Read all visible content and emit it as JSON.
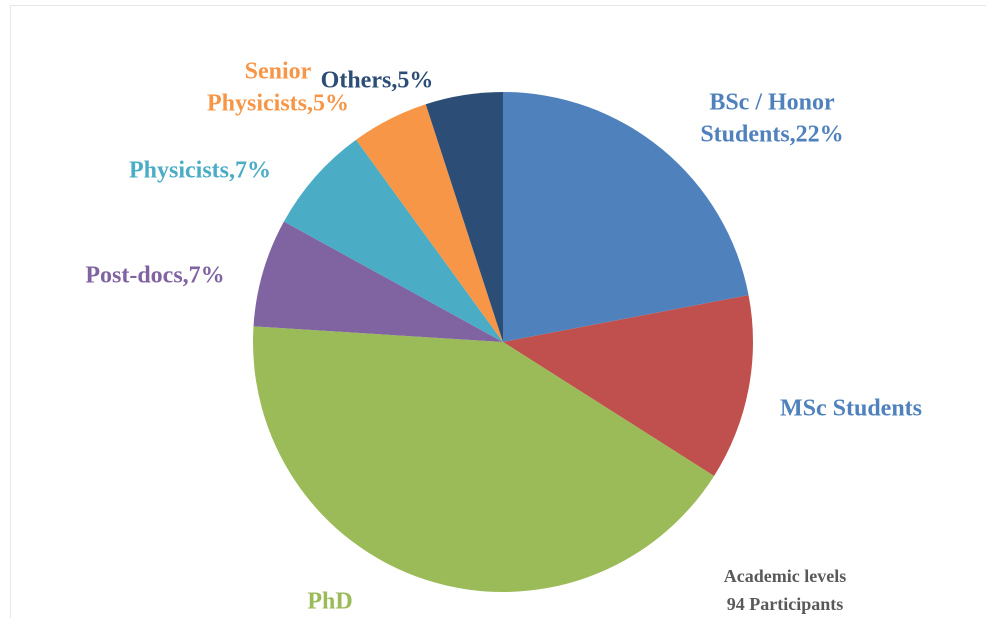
{
  "chart_data": {
    "type": "pie",
    "categories": [
      "BSc / Honor Students",
      "MSc Students",
      "PhD",
      "Post-docs",
      "Physicists",
      "Senior Physicists",
      "Others"
    ],
    "values": [
      22,
      12,
      42,
      7,
      7,
      5,
      5
    ],
    "colors": [
      "#4f81bd",
      "#c0504d",
      "#9bbb59",
      "#8064a2",
      "#4bacc6",
      "#f79646",
      "#2c4d75"
    ],
    "labels": [
      [
        "BSc / Honor",
        "Students,22%"
      ],
      [
        "MSc Students"
      ],
      [
        "PhD"
      ],
      [
        "Post-docs,7%"
      ],
      [
        "Physicists,7%"
      ],
      [
        "Senior",
        "Physicists,5%"
      ],
      [
        "Others,5%"
      ]
    ],
    "label_colors": [
      "#4f81bd",
      "#4f81bd",
      "#9bbb59",
      "#8064a2",
      "#4bacc6",
      "#f79646",
      "#2c4d75"
    ],
    "annotation": [
      "Academic levels",
      "94 Participants"
    ]
  }
}
